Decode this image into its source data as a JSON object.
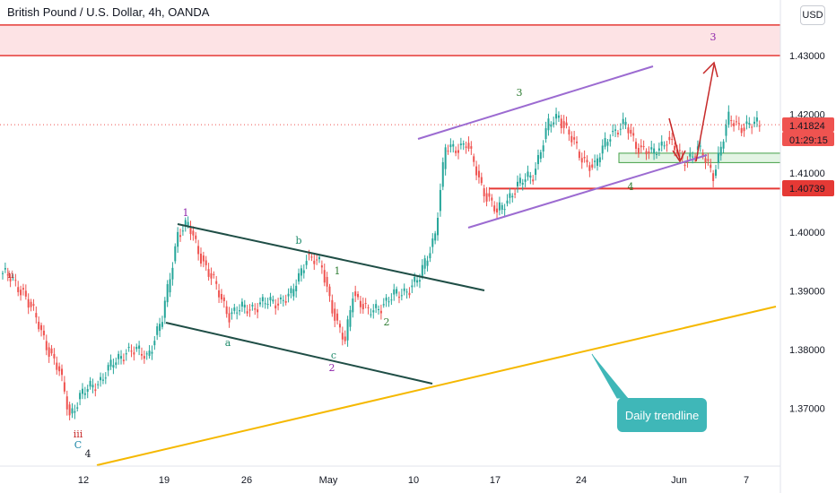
{
  "header": {
    "title": "British Pound / U.S. Dollar, 4h, OANDA",
    "currency_button": "USD"
  },
  "callout": {
    "text": "Daily trendline"
  },
  "price_labels": {
    "current": "1.41824",
    "countdown": "01:29:15",
    "level": "1.40739"
  },
  "colors": {
    "up": "#26a69a",
    "down": "#ef5350",
    "channel_green": "#1f4e46",
    "channel_purple": "#9c6bd1",
    "trendline": "#f5b800",
    "resistance": "#e53935",
    "support_zone": "#43a047",
    "callout": "#3fb7b8"
  },
  "wave_labels": [
    {
      "text": "ii",
      "color": "#c62828"
    },
    {
      "text": "iii",
      "color": "#c62828"
    },
    {
      "text": "C",
      "color": "#1e88a8"
    },
    {
      "text": "4",
      "color": "#131722"
    },
    {
      "text": "1",
      "color": "#8e24aa"
    },
    {
      "text": "a",
      "color": "#1e8a6a"
    },
    {
      "text": "b",
      "color": "#1e8a6a"
    },
    {
      "text": "c",
      "color": "#1e8a6a"
    },
    {
      "text": "2",
      "color": "#8e24aa"
    },
    {
      "text": "1",
      "color": "#2e7d32"
    },
    {
      "text": "2",
      "color": "#2e7d32"
    },
    {
      "text": "3",
      "color": "#2e7d32"
    },
    {
      "text": "4",
      "color": "#2e7d32"
    },
    {
      "text": "3",
      "color": "#8e24aa"
    }
  ],
  "chart_data": {
    "type": "candlestick",
    "title": "British Pound / U.S. Dollar, 4h, OANDA",
    "currency": "USD",
    "y_axis": {
      "ticks": [
        "1.43000",
        "1.42000",
        "1.41000",
        "1.40000",
        "1.39000",
        "1.38000",
        "1.37000"
      ],
      "range": [
        1.363,
        1.4371
      ]
    },
    "x_axis": {
      "ticks": [
        "12",
        "19",
        "26",
        "May",
        "10",
        "17",
        "24",
        "Jun",
        "7"
      ]
    },
    "key_path": [
      {
        "x": 0,
        "y": 1.393
      },
      {
        "x": 8,
        "y": 1.39
      },
      {
        "x": 22,
        "y": 1.376
      },
      {
        "x": 26,
        "y": 1.369
      },
      {
        "x": 30,
        "y": 1.372
      },
      {
        "x": 38,
        "y": 1.375
      },
      {
        "x": 48,
        "y": 1.38
      },
      {
        "x": 56,
        "y": 1.379
      },
      {
        "x": 62,
        "y": 1.385
      },
      {
        "x": 68,
        "y": 1.4
      },
      {
        "x": 72,
        "y": 1.401
      },
      {
        "x": 80,
        "y": 1.393
      },
      {
        "x": 88,
        "y": 1.386
      },
      {
        "x": 94,
        "y": 1.387
      },
      {
        "x": 104,
        "y": 1.388
      },
      {
        "x": 112,
        "y": 1.389
      },
      {
        "x": 118,
        "y": 1.396
      },
      {
        "x": 124,
        "y": 1.394
      },
      {
        "x": 130,
        "y": 1.384
      },
      {
        "x": 133,
        "y": 1.381
      },
      {
        "x": 136,
        "y": 1.39
      },
      {
        "x": 142,
        "y": 1.386
      },
      {
        "x": 148,
        "y": 1.388
      },
      {
        "x": 156,
        "y": 1.39
      },
      {
        "x": 162,
        "y": 1.392
      },
      {
        "x": 168,
        "y": 1.4
      },
      {
        "x": 172,
        "y": 1.414
      },
      {
        "x": 180,
        "y": 1.415
      },
      {
        "x": 186,
        "y": 1.408
      },
      {
        "x": 192,
        "y": 1.403
      },
      {
        "x": 198,
        "y": 1.407
      },
      {
        "x": 206,
        "y": 1.41
      },
      {
        "x": 212,
        "y": 1.418
      },
      {
        "x": 216,
        "y": 1.42
      },
      {
        "x": 224,
        "y": 1.413
      },
      {
        "x": 230,
        "y": 1.411
      },
      {
        "x": 236,
        "y": 1.417
      },
      {
        "x": 242,
        "y": 1.418
      },
      {
        "x": 246,
        "y": 1.415
      },
      {
        "x": 252,
        "y": 1.413
      },
      {
        "x": 258,
        "y": 1.416
      },
      {
        "x": 264,
        "y": 1.412
      },
      {
        "x": 270,
        "y": 1.414
      },
      {
        "x": 276,
        "y": 1.41
      },
      {
        "x": 282,
        "y": 1.419
      },
      {
        "x": 288,
        "y": 1.418
      },
      {
        "x": 294,
        "y": 1.4182
      }
    ],
    "annotations": {
      "resistance_zone": [
        1.43,
        1.4352
      ],
      "support_zone": [
        1.4118,
        1.4134
      ],
      "horizontal_level": 1.40739,
      "current_price": 1.41824,
      "text": [
        "Daily trendline"
      ]
    }
  }
}
